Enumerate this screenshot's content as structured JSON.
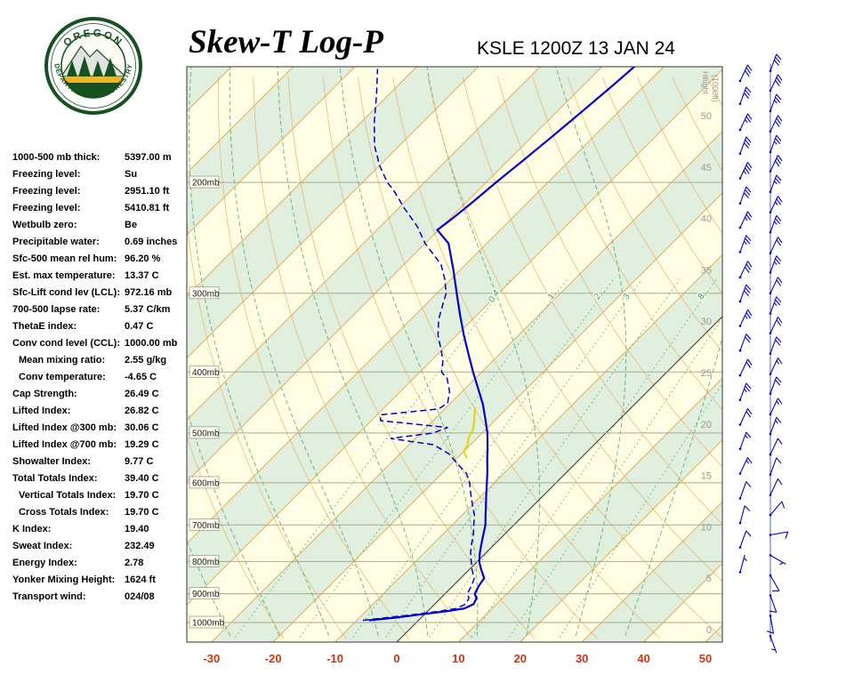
{
  "header": {
    "title": "Skew-T Log-P",
    "station": "KSLE 1200Z 13 JAN 24"
  },
  "logo": {
    "arc_top": "OREGON",
    "arc_bottom": "DEPARTMENT OF FORESTRY"
  },
  "indices": [
    {
      "label": "1000-500 mb thick:",
      "value": "5397.00 m"
    },
    {
      "label": "Freezing level:",
      "value": "Su"
    },
    {
      "label": "Freezing level:",
      "value": "2951.10 ft"
    },
    {
      "label": "Freezing level:",
      "value": "5410.81 ft"
    },
    {
      "label": "Wetbulb zero:",
      "value": "Be"
    },
    {
      "label": "Precipitable water:",
      "value": "0.69 inches"
    },
    {
      "label": "Sfc-500 mean rel hum:",
      "value": "96.20 %"
    },
    {
      "label": "Est. max temperature:",
      "value": "13.37 C"
    },
    {
      "label": "Sfc-Lift cond lev (LCL):",
      "value": "972.16 mb"
    },
    {
      "label": "700-500 lapse rate:",
      "value": "5.37 C/km"
    },
    {
      "label": "ThetaE index:",
      "value": "0.47 C"
    },
    {
      "label": "Conv cond level (CCL):",
      "value": "1000.00 mb"
    },
    {
      "label": "Mean mixing ratio:",
      "value": "2.55 g/kg",
      "indent": true
    },
    {
      "label": "Conv temperature:",
      "value": "-4.65 C",
      "indent": true
    },
    {
      "label": "Cap Strength:",
      "value": "26.49 C"
    },
    {
      "label": "Lifted Index:",
      "value": "26.82 C"
    },
    {
      "label": "Lifted Index @300 mb:",
      "value": "30.06 C"
    },
    {
      "label": "Lifted Index @700 mb:",
      "value": "19.29 C"
    },
    {
      "label": "Showalter Index:",
      "value": "9.77 C"
    },
    {
      "label": "Total Totals Index:",
      "value": "39.40 C"
    },
    {
      "label": "Vertical Totals Index:",
      "value": "19.70 C",
      "indent": true
    },
    {
      "label": "Cross Totals Index:",
      "value": "19.70 C",
      "indent": true
    },
    {
      "label": "K Index:",
      "value": "19.40"
    },
    {
      "label": "Sweat Index:",
      "value": "232.49"
    },
    {
      "label": "Energy Index:",
      "value": "2.78"
    },
    {
      "label": "Yonker Mixing Height:",
      "value": "1624 ft"
    },
    {
      "label": "Transport wind:",
      "value": "024/08"
    }
  ],
  "colors": {
    "band_cream": "#FFFEE4",
    "band_green": "#E1EFDE",
    "isotherm": "#E2A24E",
    "adiabat": "#E8B26C",
    "moist": "#3AA45F",
    "mixing_label": "#2E9E4F",
    "pressure_line": "#ABAB8D",
    "zero_isotherm": "#4A4A4A",
    "temp_axis": "#CC3311",
    "height_axis": "#9A9A9A",
    "profile": "#0000CD",
    "wetbulb": "#E2D400",
    "barb": "#0000CD"
  },
  "chart_data": {
    "type": "line",
    "subtype": "skew-t-log-p",
    "title": "Skew-T Log-P",
    "station": "KSLE 1200Z 13 JAN 24",
    "x_axis": {
      "unit": "C",
      "ticks": [
        -30,
        -20,
        -10,
        0,
        10,
        20,
        30,
        40,
        50
      ],
      "range": [
        -30,
        50
      ]
    },
    "y_axis": {
      "unit": "mb",
      "scale": "log-pressure",
      "pressure_levels": [
        200,
        300,
        400,
        500,
        600,
        700,
        800,
        900,
        1000
      ],
      "range": [
        1055,
        130
      ]
    },
    "height_axis": {
      "label": "Height",
      "sub_label": "(1000ft)",
      "ticks_kft": [
        0,
        5,
        10,
        15,
        20,
        25,
        30,
        35,
        40,
        45,
        50
      ]
    },
    "isotherm_step_c": 10,
    "moist_adiabats_c": [
      -28,
      -20,
      -12,
      -4,
      4,
      12,
      20,
      28,
      36
    ],
    "mixing_ratio_lines": [
      0.4,
      1,
      2,
      3,
      5,
      8,
      12,
      20
    ],
    "mixing_ratio_labeled": [
      0.4,
      1,
      2,
      3,
      8
    ],
    "series": [
      {
        "name": "temperature",
        "style": "solid",
        "color": "#0000CD",
        "points": [
          [
            992,
            -8
          ],
          [
            982,
            -4
          ],
          [
            972,
            -1
          ],
          [
            960,
            3
          ],
          [
            950,
            5.5
          ],
          [
            935,
            6.3
          ],
          [
            915,
            5.8
          ],
          [
            900,
            4.8
          ],
          [
            875,
            4.2
          ],
          [
            850,
            3.8
          ],
          [
            825,
            2
          ],
          [
            800,
            0.3
          ],
          [
            775,
            -1
          ],
          [
            750,
            -2.2
          ],
          [
            725,
            -3.4
          ],
          [
            700,
            -4.6
          ],
          [
            675,
            -6.2
          ],
          [
            650,
            -7.8
          ],
          [
            625,
            -9.5
          ],
          [
            600,
            -11.2
          ],
          [
            575,
            -13
          ],
          [
            550,
            -15
          ],
          [
            525,
            -17
          ],
          [
            500,
            -19.2
          ],
          [
            475,
            -21.8
          ],
          [
            450,
            -24.6
          ],
          [
            425,
            -27.9
          ],
          [
            400,
            -31.4
          ],
          [
            375,
            -35
          ],
          [
            350,
            -38.8
          ],
          [
            325,
            -42.7
          ],
          [
            300,
            -46.8
          ],
          [
            275,
            -51.2
          ],
          [
            250,
            -56.2
          ],
          [
            238,
            -60.2
          ],
          [
            228,
            -59.6
          ],
          [
            215,
            -59
          ],
          [
            200,
            -58.4
          ],
          [
            185,
            -57.6
          ],
          [
            170,
            -56.8
          ],
          [
            155,
            -56
          ],
          [
            140,
            -55.2
          ],
          [
            130,
            -54.7
          ]
        ]
      },
      {
        "name": "dewpoint",
        "style": "dashed",
        "color": "#0000CD",
        "points": [
          [
            992,
            -9
          ],
          [
            982,
            -5.5
          ],
          [
            972,
            -2
          ],
          [
            960,
            1.8
          ],
          [
            950,
            4.2
          ],
          [
            935,
            5
          ],
          [
            915,
            4.6
          ],
          [
            900,
            3.6
          ],
          [
            875,
            3
          ],
          [
            850,
            2.2
          ],
          [
            825,
            0.5
          ],
          [
            800,
            -1
          ],
          [
            775,
            -2.5
          ],
          [
            750,
            -3.8
          ],
          [
            725,
            -5
          ],
          [
            700,
            -6.5
          ],
          [
            675,
            -8
          ],
          [
            650,
            -10
          ],
          [
            625,
            -12
          ],
          [
            600,
            -14
          ],
          [
            580,
            -16
          ],
          [
            560,
            -19
          ],
          [
            540,
            -22
          ],
          [
            522,
            -26
          ],
          [
            510,
            -34
          ],
          [
            500,
            -28
          ],
          [
            490,
            -26.5
          ],
          [
            478,
            -38.5
          ],
          [
            468,
            -39.5
          ],
          [
            458,
            -31
          ],
          [
            448,
            -30.5
          ],
          [
            430,
            -32
          ],
          [
            410,
            -34.5
          ],
          [
            400,
            -36.5
          ],
          [
            385,
            -38
          ],
          [
            370,
            -40
          ],
          [
            350,
            -43
          ],
          [
            330,
            -45.5
          ],
          [
            310,
            -47.5
          ],
          [
            300,
            -48.5
          ],
          [
            285,
            -51
          ],
          [
            270,
            -54
          ],
          [
            250,
            -60
          ],
          [
            235,
            -64
          ],
          [
            220,
            -69
          ],
          [
            205,
            -74
          ],
          [
            200,
            -76
          ],
          [
            188,
            -80
          ],
          [
            175,
            -84
          ],
          [
            160,
            -88
          ],
          [
            145,
            -92
          ],
          [
            132,
            -96
          ]
        ]
      },
      {
        "name": "wetbulb",
        "style": "solid",
        "color": "#E2D400",
        "points": [
          [
            548,
            -18.5
          ],
          [
            535,
            -20
          ],
          [
            522,
            -20.5
          ],
          [
            508,
            -21.5
          ],
          [
            495,
            -22
          ],
          [
            482,
            -23
          ],
          [
            468,
            -24.2
          ],
          [
            455,
            -25.4
          ]
        ]
      }
    ],
    "wind_barbs": {
      "units": "kt",
      "format": "[pressure_mb, dir_deg_from, speed_kt]",
      "inner_column": [
        [
          138,
          25,
          30
        ],
        [
          150,
          20,
          30
        ],
        [
          165,
          25,
          25
        ],
        [
          180,
          20,
          30
        ],
        [
          197,
          25,
          35
        ],
        [
          216,
          20,
          30
        ],
        [
          236,
          25,
          25
        ],
        [
          258,
          20,
          25
        ],
        [
          283,
          25,
          30
        ],
        [
          309,
          20,
          30
        ],
        [
          338,
          25,
          25
        ],
        [
          370,
          20,
          20
        ],
        [
          405,
          25,
          20
        ],
        [
          443,
          20,
          25
        ],
        [
          485,
          25,
          20
        ],
        [
          530,
          20,
          15
        ],
        [
          580,
          25,
          15
        ],
        [
          635,
          20,
          10
        ],
        [
          695,
          15,
          10
        ],
        [
          760,
          20,
          10
        ],
        [
          832,
          15,
          5
        ]
      ],
      "axis_column": [
        [
          133,
          20,
          30
        ],
        [
          143,
          25,
          30
        ],
        [
          154,
          20,
          25
        ],
        [
          166,
          25,
          30
        ],
        [
          179,
          20,
          25
        ],
        [
          192,
          25,
          30
        ],
        [
          207,
          20,
          25
        ],
        [
          223,
          25,
          25
        ],
        [
          240,
          20,
          25
        ],
        [
          259,
          25,
          20
        ],
        [
          278,
          20,
          25
        ],
        [
          300,
          25,
          20
        ],
        [
          323,
          20,
          25
        ],
        [
          347,
          25,
          20
        ],
        [
          374,
          20,
          20
        ],
        [
          403,
          25,
          15
        ],
        [
          433,
          20,
          20
        ],
        [
          467,
          25,
          15
        ],
        [
          502,
          20,
          15
        ],
        [
          541,
          25,
          12
        ],
        [
          582,
          20,
          10
        ],
        [
          627,
          25,
          10
        ],
        [
          675,
          40,
          10
        ],
        [
          726,
          80,
          8
        ],
        [
          782,
          120,
          5
        ],
        [
          842,
          150,
          8
        ],
        [
          906,
          160,
          10
        ],
        [
          976,
          170,
          8
        ],
        [
          1051,
          160,
          5
        ]
      ]
    }
  }
}
